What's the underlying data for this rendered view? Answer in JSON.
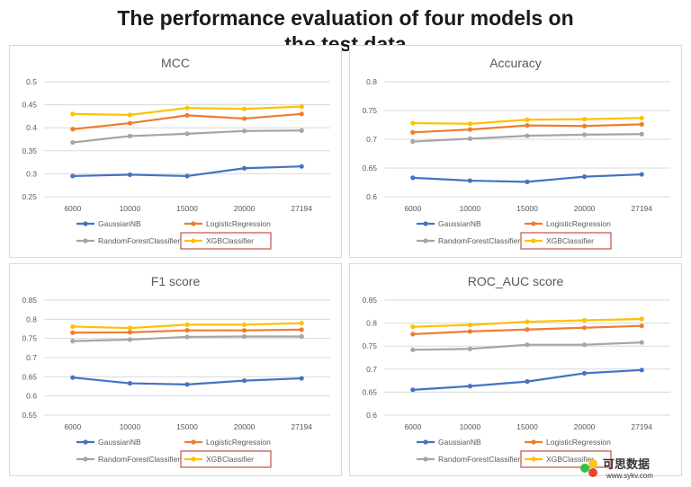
{
  "title_lines": [
    "The performance evaluation of four models on",
    "the test data"
  ],
  "series_names": [
    "GaussianNB",
    "LogisticRegression",
    "RandomForestClassifier",
    "XGBClassifier"
  ],
  "series_colors": [
    "#4472c4",
    "#ed7d31",
    "#a5a5a5",
    "#ffc000"
  ],
  "highlight_color": "#c0504d",
  "watermark": {
    "name": "可思数据",
    "url": "www.sykv.com"
  },
  "chart_data": [
    {
      "type": "line",
      "title": "MCC",
      "categories": [
        "6000",
        "10000",
        "15000",
        "20000",
        "27194"
      ],
      "yticks": [
        "0.25",
        "0.3",
        "0.35",
        "0.4",
        "0.45",
        "0.5"
      ],
      "ylim": [
        0.25,
        0.5
      ],
      "grid": true,
      "legend_position": "bottom",
      "series": [
        {
          "name": "GaussianNB",
          "values": [
            0.295,
            0.298,
            0.295,
            0.312,
            0.316
          ]
        },
        {
          "name": "LogisticRegression",
          "values": [
            0.397,
            0.41,
            0.427,
            0.42,
            0.43
          ]
        },
        {
          "name": "RandomForestClassifier",
          "values": [
            0.368,
            0.382,
            0.387,
            0.393,
            0.394
          ]
        },
        {
          "name": "XGBClassifier",
          "values": [
            0.43,
            0.428,
            0.443,
            0.441,
            0.446
          ]
        }
      ]
    },
    {
      "type": "line",
      "title": "Accuracy",
      "categories": [
        "6000",
        "10000",
        "15000",
        "20000",
        "27194"
      ],
      "yticks": [
        "0.6",
        "0.65",
        "0.7",
        "0.75",
        "0.8"
      ],
      "ylim": [
        0.6,
        0.8
      ],
      "grid": true,
      "legend_position": "bottom",
      "series": [
        {
          "name": "GaussianNB",
          "values": [
            0.633,
            0.628,
            0.626,
            0.635,
            0.639
          ]
        },
        {
          "name": "LogisticRegression",
          "values": [
            0.712,
            0.717,
            0.724,
            0.723,
            0.726
          ]
        },
        {
          "name": "RandomForestClassifier",
          "values": [
            0.696,
            0.701,
            0.706,
            0.708,
            0.709
          ]
        },
        {
          "name": "XGBClassifier",
          "values": [
            0.728,
            0.727,
            0.734,
            0.735,
            0.737
          ]
        }
      ]
    },
    {
      "type": "line",
      "title": "F1 score",
      "categories": [
        "6000",
        "10000",
        "15000",
        "20000",
        "27194"
      ],
      "yticks": [
        "0.55",
        "0.6",
        "0.65",
        "0.7",
        "0.75",
        "0.8",
        "0.85"
      ],
      "ylim": [
        0.55,
        0.85
      ],
      "grid": true,
      "legend_position": "bottom",
      "series": [
        {
          "name": "GaussianNB",
          "values": [
            0.648,
            0.633,
            0.63,
            0.64,
            0.646
          ]
        },
        {
          "name": "LogisticRegression",
          "values": [
            0.765,
            0.766,
            0.771,
            0.771,
            0.773
          ]
        },
        {
          "name": "RandomForestClassifier",
          "values": [
            0.743,
            0.747,
            0.754,
            0.755,
            0.755
          ]
        },
        {
          "name": "XGBClassifier",
          "values": [
            0.781,
            0.777,
            0.786,
            0.786,
            0.79
          ]
        }
      ]
    },
    {
      "type": "line",
      "title": "ROC_AUC score",
      "categories": [
        "6000",
        "10000",
        "15000",
        "20000",
        "27194"
      ],
      "yticks": [
        "0.6",
        "0.65",
        "0.7",
        "0.75",
        "0.8",
        "0.85"
      ],
      "ylim": [
        0.6,
        0.85
      ],
      "grid": true,
      "legend_position": "bottom",
      "series": [
        {
          "name": "GaussianNB",
          "values": [
            0.655,
            0.663,
            0.673,
            0.691,
            0.698
          ]
        },
        {
          "name": "LogisticRegression",
          "values": [
            0.776,
            0.782,
            0.786,
            0.79,
            0.794
          ]
        },
        {
          "name": "RandomForestClassifier",
          "values": [
            0.742,
            0.744,
            0.753,
            0.753,
            0.758
          ]
        },
        {
          "name": "XGBClassifier",
          "values": [
            0.792,
            0.796,
            0.803,
            0.806,
            0.809
          ]
        }
      ]
    }
  ]
}
